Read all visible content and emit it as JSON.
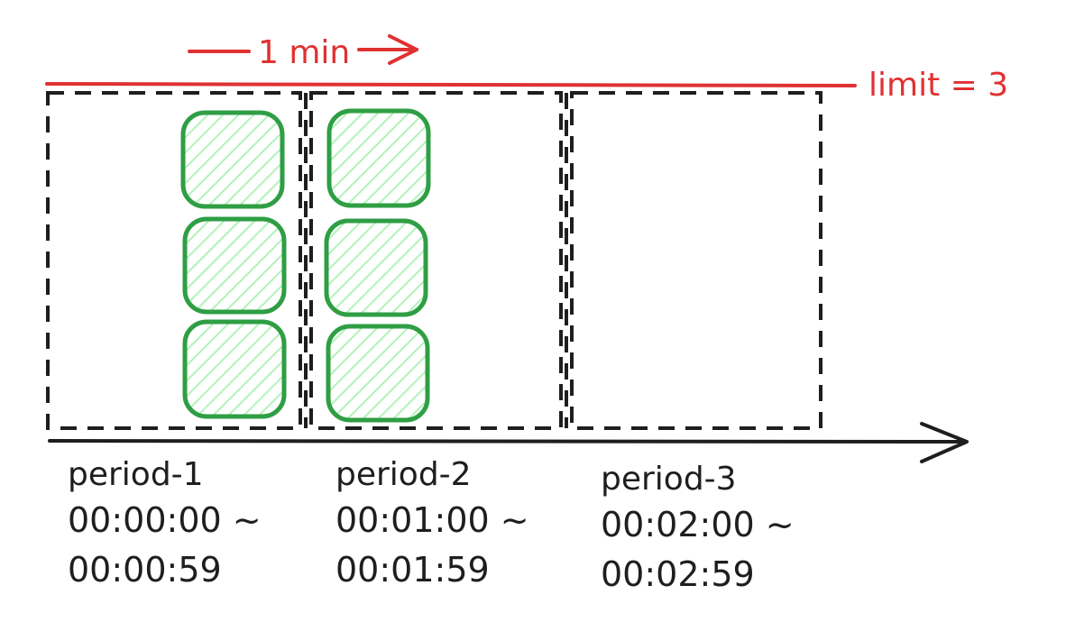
{
  "diagram": {
    "interval_label": "1 min",
    "limit_label": "limit = 3",
    "periods": [
      {
        "name": "period-1",
        "start": "00:00:00 ~",
        "end": "00:00:59",
        "requests": 3
      },
      {
        "name": "period-2",
        "start": "00:01:00 ~",
        "end": "00:01:59",
        "requests": 3
      },
      {
        "name": "period-3",
        "start": "00:02:00 ~",
        "end": "00:02:59",
        "requests": 0
      }
    ]
  },
  "colors": {
    "limit": "#e03131",
    "request_stroke": "#2f9e44",
    "request_fill": "#b2f2bb",
    "box_stroke": "#1e1e1e",
    "axis": "#1e1e1e"
  }
}
